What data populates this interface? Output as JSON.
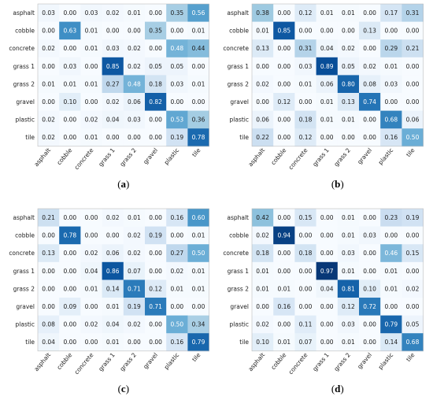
{
  "chart_data": [
    {
      "type": "heatmap",
      "caption": "(a)",
      "rows": [
        "asphalt",
        "cobble",
        "concrete",
        "grass 1",
        "grass 2",
        "gravel",
        "plastic",
        "tile"
      ],
      "columns": [
        "asphalt",
        "cobble",
        "concrete",
        "grass 1",
        "grass 2",
        "gravel",
        "plastic",
        "tile"
      ],
      "values": [
        [
          0.03,
          0.0,
          0.03,
          0.02,
          0.01,
          0.0,
          0.35,
          0.56
        ],
        [
          0.0,
          0.63,
          0.01,
          0.0,
          0.0,
          0.35,
          0.0,
          0.01
        ],
        [
          0.02,
          0.0,
          0.01,
          0.03,
          0.02,
          0.0,
          0.48,
          0.44
        ],
        [
          0.0,
          0.03,
          0.0,
          0.85,
          0.02,
          0.05,
          0.05,
          0.0
        ],
        [
          0.01,
          0.01,
          0.01,
          0.27,
          0.48,
          0.18,
          0.03,
          0.01
        ],
        [
          0.0,
          0.1,
          0.0,
          0.02,
          0.06,
          0.82,
          0.0,
          0.0
        ],
        [
          0.02,
          0.0,
          0.02,
          0.04,
          0.03,
          0.0,
          0.53,
          0.36
        ],
        [
          0.02,
          0.0,
          0.01,
          0.0,
          0.0,
          0.0,
          0.19,
          0.78
        ]
      ]
    },
    {
      "type": "heatmap",
      "caption": "(b)",
      "rows": [
        "asphalt",
        "cobble",
        "concrete",
        "grass 1",
        "grass 2",
        "gravel",
        "plastic",
        "tile"
      ],
      "columns": [
        "asphalt",
        "cobble",
        "concrete",
        "grass 1",
        "grass 2",
        "gravel",
        "plastic",
        "tile"
      ],
      "values": [
        [
          0.38,
          0.0,
          0.12,
          0.01,
          0.01,
          0.0,
          0.17,
          0.31
        ],
        [
          0.01,
          0.85,
          0.0,
          0.0,
          0.0,
          0.13,
          0.0,
          0.0
        ],
        [
          0.13,
          0.0,
          0.31,
          0.04,
          0.02,
          0.0,
          0.29,
          0.21
        ],
        [
          0.0,
          0.0,
          0.03,
          0.89,
          0.05,
          0.02,
          0.01,
          0.0
        ],
        [
          0.02,
          0.0,
          0.01,
          0.06,
          0.8,
          0.08,
          0.03,
          0.0
        ],
        [
          0.0,
          0.12,
          0.0,
          0.01,
          0.13,
          0.74,
          0.0,
          0.0
        ],
        [
          0.06,
          0.0,
          0.18,
          0.01,
          0.01,
          0.0,
          0.68,
          0.06
        ],
        [
          0.22,
          0.0,
          0.12,
          0.0,
          0.0,
          0.0,
          0.16,
          0.5
        ]
      ]
    },
    {
      "type": "heatmap",
      "caption": "(c)",
      "rows": [
        "asphalt",
        "cobble",
        "concrete",
        "grass 1",
        "grass 2",
        "gravel",
        "plastic",
        "tile"
      ],
      "columns": [
        "asphalt",
        "cobble",
        "concrete",
        "grass 1",
        "grass 2",
        "gravel",
        "plastic",
        "tile"
      ],
      "values": [
        [
          0.21,
          0.0,
          0.0,
          0.02,
          0.01,
          0.0,
          0.16,
          0.6
        ],
        [
          0.0,
          0.78,
          0.0,
          0.0,
          0.02,
          0.19,
          0.0,
          0.01
        ],
        [
          0.13,
          0.0,
          0.02,
          0.06,
          0.02,
          0.0,
          0.27,
          0.5
        ],
        [
          0.0,
          0.0,
          0.04,
          0.86,
          0.07,
          0.0,
          0.02,
          0.01
        ],
        [
          0.0,
          0.0,
          0.01,
          0.14,
          0.71,
          0.12,
          0.01,
          0.01
        ],
        [
          0.0,
          0.09,
          0.0,
          0.01,
          0.19,
          0.71,
          0.0,
          0.0
        ],
        [
          0.08,
          0.0,
          0.02,
          0.04,
          0.02,
          0.0,
          0.5,
          0.34
        ],
        [
          0.04,
          0.0,
          0.0,
          0.01,
          0.0,
          0.0,
          0.16,
          0.79
        ]
      ]
    },
    {
      "type": "heatmap",
      "caption": "(d)",
      "rows": [
        "asphalt",
        "cobble",
        "concrete",
        "grass 1",
        "grass 2",
        "gravel",
        "plastic",
        "tile"
      ],
      "columns": [
        "asphalt",
        "cobble",
        "concrete",
        "grass 1",
        "grass 2",
        "gravel",
        "plastic",
        "tile"
      ],
      "values": [
        [
          0.42,
          0.0,
          0.15,
          0.0,
          0.01,
          0.0,
          0.23,
          0.19
        ],
        [
          0.02,
          0.94,
          0.0,
          0.0,
          0.01,
          0.03,
          0.0,
          0.0
        ],
        [
          0.18,
          0.0,
          0.18,
          0.0,
          0.03,
          0.0,
          0.46,
          0.15
        ],
        [
          0.01,
          0.0,
          0.0,
          0.97,
          0.01,
          0.0,
          0.01,
          0.0
        ],
        [
          0.01,
          0.01,
          0.0,
          0.04,
          0.81,
          0.1,
          0.01,
          0.02
        ],
        [
          0.0,
          0.16,
          0.0,
          0.0,
          0.12,
          0.72,
          0.0,
          0.0
        ],
        [
          0.02,
          0.0,
          0.11,
          0.0,
          0.03,
          0.0,
          0.79,
          0.05
        ],
        [
          0.1,
          0.01,
          0.07,
          0.0,
          0.01,
          0.0,
          0.14,
          0.68
        ]
      ]
    }
  ],
  "colors": {
    "low": "#f7fbff",
    "high": "#08306b"
  }
}
